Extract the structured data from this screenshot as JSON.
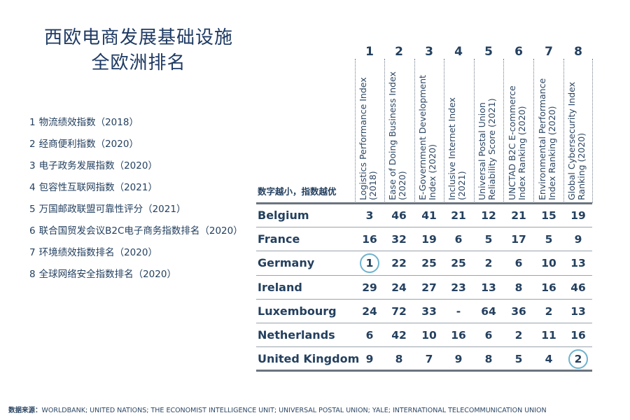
{
  "title": {
    "line1": "西欧电商发展基础设施",
    "line2": "全欧洲排名"
  },
  "legend": [
    {
      "num": "1",
      "text": "物流绩效指数（2018）"
    },
    {
      "num": "2",
      "text": "经商便利指数（2020）"
    },
    {
      "num": "3",
      "text": "电子政务发展指数（2020）"
    },
    {
      "num": "4",
      "text": "包容性互联网指数（2021）"
    },
    {
      "num": "5",
      "text": "万国邮政联盟可靠性评分（2021）"
    },
    {
      "num": "6",
      "text": "联合国贸发会议B2C电子商务指数排名（2020）"
    },
    {
      "num": "7",
      "text": "环境绩效指数排名（2020）"
    },
    {
      "num": "8",
      "text": "全球网络安全指数排名（2020）"
    }
  ],
  "note": "数字越小，指数越优",
  "columns": [
    {
      "num": "1",
      "line1": "Logistics Performance Index",
      "line2": "(2018)"
    },
    {
      "num": "2",
      "line1": "Ease of Doing Business Index",
      "line2": "(2020)"
    },
    {
      "num": "3",
      "line1": "E-Government Development",
      "line2": "Index (2020)"
    },
    {
      "num": "4",
      "line1": "Inclusive Internet Index",
      "line2": "(2021)"
    },
    {
      "num": "5",
      "line1": "Universal Postal Union",
      "line2": "Reliability Score (2021)"
    },
    {
      "num": "6",
      "line1": "UNCTAD B2C E-commerce",
      "line2": "Index Ranking (2020)"
    },
    {
      "num": "7",
      "line1": "Environmental Performance",
      "line2": "Index Ranking (2020)"
    },
    {
      "num": "8",
      "line1": "Global Cybersecurity Index",
      "line2": "Ranking (2020)"
    }
  ],
  "rows": [
    {
      "country": "Belgium",
      "values": [
        "3",
        "46",
        "41",
        "21",
        "12",
        "21",
        "15",
        "19"
      ]
    },
    {
      "country": "France",
      "values": [
        "16",
        "32",
        "19",
        "6",
        "5",
        "17",
        "5",
        "9"
      ]
    },
    {
      "country": "Germany",
      "values": [
        "1",
        "22",
        "25",
        "25",
        "2",
        "6",
        "10",
        "13"
      ]
    },
    {
      "country": "Ireland",
      "values": [
        "29",
        "24",
        "27",
        "23",
        "13",
        "8",
        "16",
        "46"
      ]
    },
    {
      "country": "Luxembourg",
      "values": [
        "24",
        "72",
        "33",
        "-",
        "64",
        "36",
        "2",
        "13"
      ]
    },
    {
      "country": "Netherlands",
      "values": [
        "6",
        "42",
        "10",
        "16",
        "6",
        "2",
        "11",
        "16"
      ]
    },
    {
      "country": "United Kingdom",
      "values": [
        "9",
        "8",
        "7",
        "9",
        "8",
        "5",
        "4",
        "2"
      ]
    }
  ],
  "highlights": [
    {
      "row": 2,
      "col": 0
    },
    {
      "row": 6,
      "col": 7
    }
  ],
  "colors": {
    "text": "#24405f",
    "title": "#1e3a63",
    "highlight_ring": "#6fb3cf"
  },
  "source": {
    "label": "数据来源：",
    "text": "WORLDBANK; UNITED NATIONS; THE ECONOMIST INTELLIGENCE UNIT; UNIVERSAL POSTAL UNION; YALE; INTERNATIONAL TELECOMMUNICATION UNION"
  }
}
